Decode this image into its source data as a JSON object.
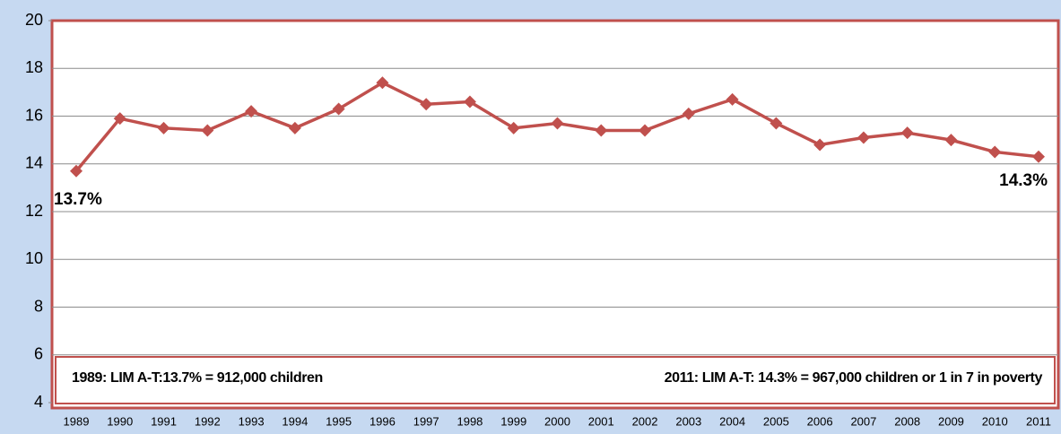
{
  "chart_data": {
    "type": "line",
    "categories": [
      "1989",
      "1990",
      "1991",
      "1992",
      "1993",
      "1994",
      "1995",
      "1996",
      "1997",
      "1998",
      "1999",
      "2000",
      "2001",
      "2002",
      "2003",
      "2004",
      "2005",
      "2006",
      "2007",
      "2008",
      "2009",
      "2010",
      "2011"
    ],
    "series": [
      {
        "color": "#c0504d",
        "values": [
          13.7,
          15.9,
          15.5,
          15.4,
          16.2,
          15.5,
          16.3,
          17.4,
          16.5,
          16.6,
          15.5,
          15.7,
          15.4,
          15.4,
          16.1,
          16.7,
          15.7,
          14.8,
          15.1,
          15.3,
          15.0,
          14.5,
          14.3
        ],
        "value_labels": [
          "13.7%",
          null,
          null,
          null,
          null,
          null,
          null,
          null,
          null,
          null,
          null,
          null,
          null,
          null,
          null,
          null,
          null,
          null,
          null,
          null,
          null,
          null,
          "14.3%"
        ]
      }
    ],
    "ylim": [
      4,
      20
    ],
    "yticks": [
      4,
      6,
      8,
      10,
      12,
      14,
      16,
      18,
      20
    ],
    "grid": true,
    "annotations": [
      "1989: LIM A-T:13.7% = 912,000 children",
      "2011: LIM A-T: 14.3% = 967,000 children or 1 in 7  in poverty"
    ]
  }
}
